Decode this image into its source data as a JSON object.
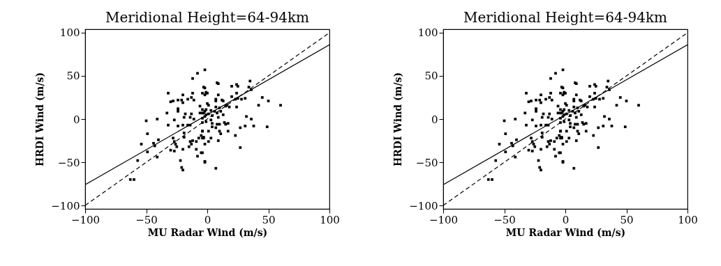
{
  "chart_data": [
    {
      "type": "scatter",
      "title": "Meridional Height=64-94km",
      "xlabel": "MU Radar Wind (m/s)",
      "ylabel": "HRDI Wind (m/s)",
      "xlim": [
        -100,
        100
      ],
      "ylim": [
        -104,
        104
      ],
      "xticks": [
        -100,
        -50,
        0,
        50,
        100
      ],
      "yticks": [
        -100,
        -50,
        0,
        50,
        100
      ],
      "series": [
        {
          "type": "scatter",
          "color": "#000000",
          "marker": "square",
          "x": [
            -2,
            -8,
            -12,
            -32,
            -20,
            -12,
            -3,
            -4,
            -1,
            -30,
            -28,
            -24,
            -21,
            -20,
            -16,
            -13,
            -11,
            -24,
            -24,
            -33,
            -18,
            -19,
            -13,
            -14,
            -11,
            -6,
            -4,
            -6,
            -4,
            -2,
            -2,
            -4,
            -50,
            -41,
            -32,
            -27,
            -24,
            -20,
            -16,
            -49,
            -40,
            -54,
            -44,
            -43,
            -49,
            -57,
            -41,
            -63,
            -60,
            -28,
            -27,
            -26,
            -25,
            -30,
            -27,
            -20,
            -22,
            -21,
            -20,
            -19,
            -19,
            -14,
            -12,
            -9,
            -7,
            -4,
            -5,
            -15,
            -13,
            -9,
            -8,
            -5,
            -2,
            -4,
            -3,
            -14,
            8,
            9,
            20,
            24,
            25,
            35,
            34,
            36,
            -2,
            -1,
            -2,
            0,
            9,
            20,
            24,
            7,
            7,
            12,
            13,
            23,
            25,
            28,
            31,
            45,
            50,
            60,
            42,
            0,
            1,
            7,
            10,
            15,
            16,
            18,
            24,
            -1,
            3,
            6,
            8,
            11,
            -3,
            -1,
            1,
            4,
            9,
            13,
            32,
            36,
            -4,
            -1,
            3,
            4,
            8,
            14,
            15,
            17,
            4,
            7,
            10,
            10,
            11,
            17,
            27,
            31,
            38,
            49,
            -4,
            1,
            -3,
            3,
            1,
            -2,
            9,
            23,
            27,
            -4,
            -2,
            7
          ],
          "values": [
            57,
            53,
            47,
            30,
            28,
            30,
            37,
            30,
            31,
            20,
            21,
            22,
            22,
            19,
            23,
            25,
            22,
            12,
            9,
            7,
            6,
            2,
            6,
            2,
            0,
            15,
            11,
            7,
            7,
            9,
            3,
            1,
            -2,
            0,
            -7,
            -1,
            -8,
            -7,
            -7,
            -17,
            -24,
            -29,
            -28,
            -31,
            -38,
            -48,
            -44,
            -70,
            -70,
            -22,
            -26,
            -29,
            -32,
            -36,
            -37,
            -35,
            -48,
            -56,
            -59,
            -16,
            -21,
            -26,
            -25,
            -26,
            -22,
            -22,
            -19,
            -32,
            -29,
            -35,
            -43,
            -39,
            -49,
            -14,
            -22,
            -7,
            42,
            41,
            38,
            40,
            38,
            44,
            37,
            34,
            36,
            30,
            28,
            30,
            28,
            26,
            30,
            23,
            21,
            22,
            21,
            23,
            24,
            23,
            24,
            25,
            21,
            16,
            16,
            18,
            16,
            14,
            13,
            15,
            16,
            14,
            14,
            11,
            10,
            9,
            7,
            9,
            7,
            5,
            6,
            4,
            2,
            5,
            3,
            0,
            -4,
            -3,
            -1,
            -5,
            -6,
            -4,
            -6,
            -5,
            -9,
            -10,
            -6,
            -14,
            -17,
            -14,
            -10,
            -8,
            -8,
            -9,
            -14,
            -14,
            -21,
            -22,
            -26,
            -29,
            -25,
            -19,
            -33,
            -39,
            -50,
            -57
          ]
        },
        {
          "type": "line",
          "color": "#000000",
          "line_style": "solid",
          "x": [
            -100,
            100
          ],
          "values": [
            -76,
            86
          ]
        },
        {
          "type": "line",
          "color": "#000000",
          "line_style": "dashed",
          "x": [
            -100,
            100
          ],
          "values": [
            -100,
            100
          ]
        }
      ]
    },
    {
      "type": "scatter",
      "title": "Meridional Height=64-94km",
      "xlabel": "MU Radar Wind (m/s)",
      "ylabel": "HRDI Wind (m/s)",
      "xlim": [
        -100,
        100
      ],
      "ylim": [
        -104,
        104
      ],
      "xticks": [
        -100,
        -50,
        0,
        50,
        100
      ],
      "yticks": [
        -100,
        -50,
        0,
        50,
        100
      ],
      "series": [
        {
          "type": "scatter",
          "color": "#000000",
          "marker": "square",
          "x": [
            -2,
            -8,
            -12,
            -32,
            -20,
            -12,
            -3,
            -4,
            -1,
            -30,
            -28,
            -24,
            -21,
            -20,
            -16,
            -13,
            -11,
            -24,
            -24,
            -33,
            -18,
            -19,
            -13,
            -14,
            -11,
            -6,
            -4,
            -6,
            -4,
            -2,
            -2,
            -4,
            -50,
            -41,
            -32,
            -27,
            -24,
            -20,
            -16,
            -49,
            -40,
            -54,
            -44,
            -43,
            -49,
            -57,
            -41,
            -63,
            -60,
            -28,
            -27,
            -26,
            -25,
            -30,
            -27,
            -20,
            -22,
            -21,
            -20,
            -19,
            -19,
            -14,
            -12,
            -9,
            -7,
            -4,
            -5,
            -15,
            -13,
            -9,
            -8,
            -5,
            -2,
            -4,
            -3,
            -14,
            8,
            9,
            20,
            24,
            25,
            35,
            34,
            36,
            -2,
            -1,
            -2,
            0,
            9,
            20,
            24,
            7,
            7,
            12,
            13,
            23,
            25,
            28,
            31,
            45,
            50,
            60,
            42,
            0,
            1,
            7,
            10,
            15,
            16,
            18,
            24,
            -1,
            3,
            6,
            8,
            11,
            -3,
            -1,
            1,
            4,
            9,
            13,
            32,
            36,
            -4,
            -1,
            3,
            4,
            8,
            14,
            15,
            17,
            4,
            7,
            10,
            10,
            11,
            17,
            27,
            31,
            38,
            49,
            -4,
            1,
            -3,
            3,
            1,
            -2,
            9,
            23,
            27,
            -4,
            -2,
            7
          ],
          "values": [
            57,
            53,
            47,
            30,
            28,
            30,
            37,
            30,
            31,
            20,
            21,
            22,
            22,
            19,
            23,
            25,
            22,
            12,
            9,
            7,
            6,
            2,
            6,
            2,
            0,
            15,
            11,
            7,
            7,
            9,
            3,
            1,
            -2,
            0,
            -7,
            -1,
            -8,
            -7,
            -7,
            -17,
            -24,
            -29,
            -28,
            -31,
            -38,
            -48,
            -44,
            -70,
            -70,
            -22,
            -26,
            -29,
            -32,
            -36,
            -37,
            -35,
            -48,
            -56,
            -59,
            -16,
            -21,
            -26,
            -25,
            -26,
            -22,
            -22,
            -19,
            -32,
            -29,
            -35,
            -43,
            -39,
            -49,
            -14,
            -22,
            -7,
            42,
            41,
            38,
            40,
            38,
            44,
            37,
            34,
            36,
            30,
            28,
            30,
            28,
            26,
            30,
            23,
            21,
            22,
            21,
            23,
            24,
            23,
            24,
            25,
            21,
            16,
            16,
            18,
            16,
            14,
            13,
            15,
            16,
            14,
            14,
            11,
            10,
            9,
            7,
            9,
            7,
            5,
            6,
            4,
            2,
            5,
            3,
            0,
            -4,
            -3,
            -1,
            -5,
            -6,
            -4,
            -6,
            -5,
            -9,
            -10,
            -6,
            -14,
            -17,
            -14,
            -10,
            -8,
            -8,
            -9,
            -14,
            -14,
            -21,
            -22,
            -26,
            -29,
            -25,
            -19,
            -33,
            -39,
            -50,
            -57
          ]
        },
        {
          "type": "line",
          "color": "#000000",
          "line_style": "solid",
          "x": [
            -100,
            100
          ],
          "values": [
            -76,
            86
          ]
        },
        {
          "type": "line",
          "color": "#000000",
          "line_style": "dashed",
          "x": [
            -100,
            100
          ],
          "values": [
            -100,
            100
          ]
        }
      ]
    }
  ]
}
